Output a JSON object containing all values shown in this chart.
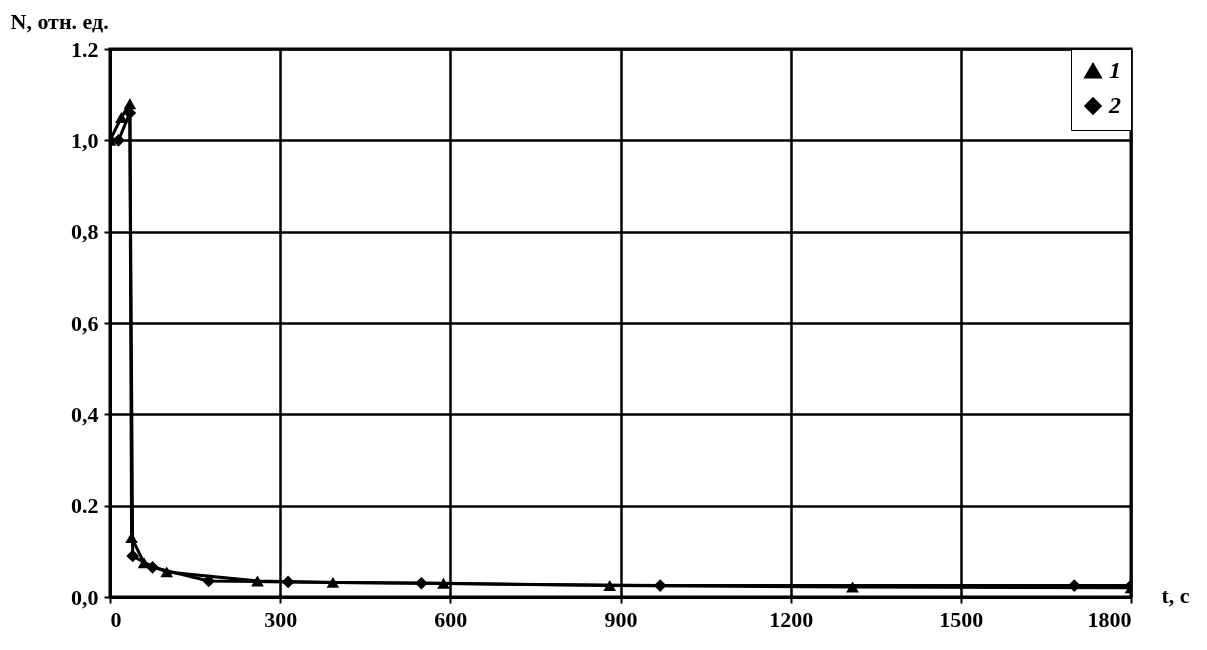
{
  "chart_data": {
    "type": "line",
    "xlabel": "t, с",
    "ylabel": "N, отн. ед.",
    "xlim": [
      0,
      1800
    ],
    "xticks": [
      0,
      300,
      600,
      900,
      1200,
      1500,
      1800
    ],
    "ylim": [
      0,
      1.2
    ],
    "yticks": [
      {
        "value": 0,
        "label": "0,0"
      },
      {
        "value": 0.2,
        "label": "0.2"
      },
      {
        "value": 0.4,
        "label": "0,4"
      },
      {
        "value": 0.6,
        "label": "0,6"
      },
      {
        "value": 0.8,
        "label": "0,8"
      },
      {
        "value": 1,
        "label": "1,0"
      },
      {
        "value": 1.2,
        "label": "1.2"
      }
    ],
    "grid": true,
    "legend": "top right",
    "line_style": "solid",
    "series": [
      {
        "name": "1",
        "color": "#000000",
        "marker": "triangle",
        "x": [
          0,
          20,
          35,
          38,
          60,
          100,
          260,
          393,
          588,
          881,
          1309,
          1800
        ],
        "values": [
          1.0,
          1.05,
          1.08,
          0.13,
          0.075,
          0.055,
          0.035,
          0.032,
          0.03,
          0.025,
          0.022,
          0.02
        ]
      },
      {
        "name": "2",
        "color": "#000000",
        "marker": "diamond",
        "x": [
          0,
          15,
          35,
          40,
          75,
          174,
          314,
          549,
          970,
          1700,
          1800
        ],
        "values": [
          1.0,
          1.0,
          1.06,
          0.09,
          0.065,
          0.035,
          0.033,
          0.03,
          0.025,
          0.025,
          0.025
        ]
      }
    ]
  }
}
